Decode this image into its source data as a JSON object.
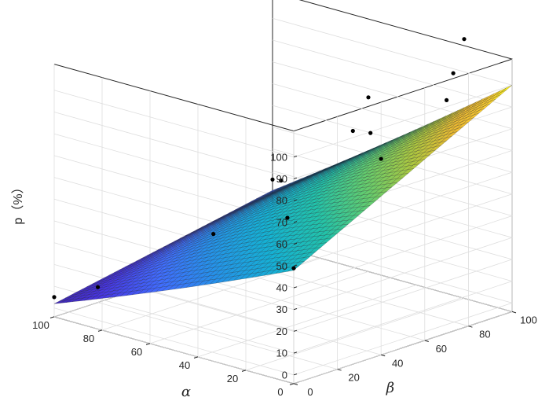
{
  "chart_data": {
    "type": "surface3d",
    "title": "",
    "xlabel": "α",
    "ylabel": "β",
    "zlabel": "p（%）",
    "xlim": [
      0,
      100
    ],
    "ylim": [
      0,
      100
    ],
    "zlim": [
      0,
      100
    ],
    "x_ticks": [
      "0",
      "20",
      "40",
      "60",
      "80",
      "100"
    ],
    "y_ticks": [
      "0",
      "20",
      "40",
      "60",
      "80",
      "100"
    ],
    "z_ticks": [
      "0",
      "10",
      "20",
      "30",
      "40",
      "50",
      "60",
      "70",
      "80",
      "90",
      "100"
    ],
    "grid": true,
    "colormap": "parula",
    "surface_corners": {
      "alpha0_beta0": 48,
      "alpha100_beta0": 2,
      "alpha0_beta100": 100,
      "alpha100_beta100": 21
    },
    "scatter_points": [
      {
        "alpha": 0,
        "beta": 0,
        "p": 49
      },
      {
        "alpha": 0,
        "beta": 40,
        "p": 86
      },
      {
        "alpha": 0,
        "beta": 70,
        "p": 103
      },
      {
        "alpha": 30,
        "beta": 30,
        "p": 53
      },
      {
        "alpha": 30,
        "beta": 60,
        "p": 83
      },
      {
        "alpha": 20,
        "beta": 95,
        "p": 101
      },
      {
        "alpha": 60,
        "beta": 60,
        "p": 51
      },
      {
        "alpha": 50,
        "beta": 90,
        "p": 66
      },
      {
        "alpha": 60,
        "beta": 100,
        "p": 76
      },
      {
        "alpha": 100,
        "beta": 100,
        "p": 26
      },
      {
        "alpha": 70,
        "beta": 40,
        "p": 30
      },
      {
        "alpha": 100,
        "beta": 0,
        "p": 5
      },
      {
        "alpha": 100,
        "beta": 20,
        "p": 3
      },
      {
        "alpha": 20,
        "beta": 100,
        "p": 115
      }
    ]
  }
}
